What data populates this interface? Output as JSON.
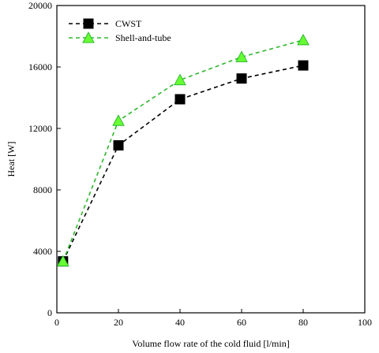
{
  "chart_data": {
    "type": "line",
    "title": "",
    "xlabel": "Volume flow rate of the cold fluid [l/min]",
    "ylabel": "Heat [W]",
    "xlim": [
      0,
      100
    ],
    "ylim": [
      0,
      20000
    ],
    "x_ticks": [
      "0",
      "20",
      "40",
      "60",
      "80",
      "100"
    ],
    "y_ticks": [
      "0",
      "4000",
      "8000",
      "12000",
      "16000",
      "20000"
    ],
    "grid": false,
    "legend_position": "top-left",
    "series": [
      {
        "name": "CWST",
        "marker": "square",
        "color": "#000000",
        "line_style": "dashed",
        "x": [
          2,
          20,
          40,
          60,
          80
        ],
        "y": [
          3350,
          10900,
          13900,
          15250,
          16100
        ]
      },
      {
        "name": "Shell-and-tube",
        "marker": "triangle",
        "color": "#2eb82e",
        "marker_fill": "#66ff33",
        "line_style": "dashed",
        "x": [
          2,
          20,
          40,
          60,
          80
        ],
        "y": [
          3350,
          12500,
          15150,
          16650,
          17750
        ]
      }
    ]
  }
}
